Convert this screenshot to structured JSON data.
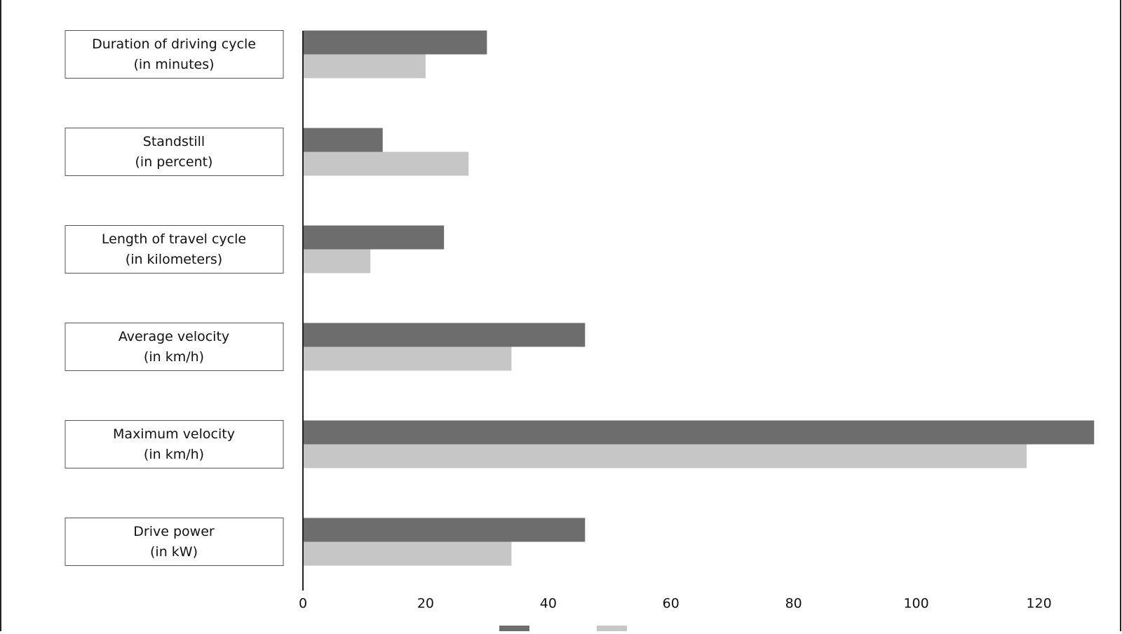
{
  "chart_data": {
    "type": "bar",
    "orientation": "horizontal",
    "categories": [
      [
        "Duration of driving cycle",
        "(in minutes)"
      ],
      [
        "Standstill",
        "(in percent)"
      ],
      [
        "Length of travel cycle",
        "(in kilometers)"
      ],
      [
        "Average velocity",
        "(in km/h)"
      ],
      [
        "Maximum velocity",
        "(in km/h)"
      ],
      [
        "Drive power",
        "(in kW)"
      ]
    ],
    "series": [
      {
        "color": "#6d6d6d",
        "values": [
          30,
          13,
          23,
          46,
          129,
          46
        ]
      },
      {
        "color": "#c6c6c6",
        "values": [
          20,
          27,
          11,
          34,
          118,
          34
        ]
      }
    ],
    "xlim": [
      0,
      130
    ],
    "xticks": [
      0,
      20,
      40,
      60,
      80,
      100,
      120
    ],
    "grid": false
  }
}
